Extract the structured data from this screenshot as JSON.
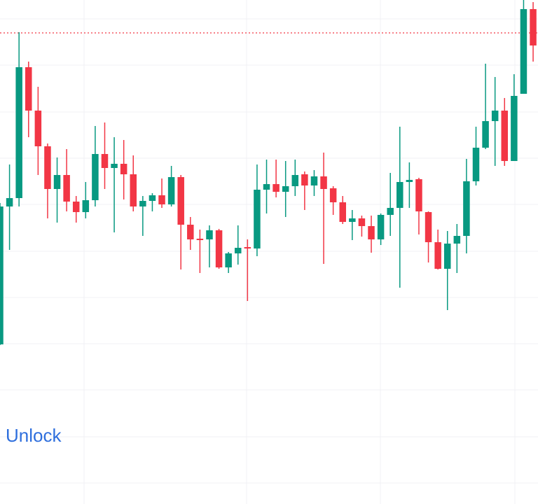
{
  "chart_data": {
    "type": "candlestick",
    "open": [
      228,
      425,
      437,
      624,
      562,
      511,
      450,
      470,
      432,
      417,
      434,
      500,
      480,
      486,
      471,
      425,
      433,
      441,
      428,
      467,
      399,
      379,
      378,
      391,
      338,
      358,
      367,
      365,
      449,
      457,
      446,
      454,
      471,
      455,
      468,
      451,
      431,
      403,
      408,
      397,
      378,
      413,
      423,
      460,
      464,
      417,
      374,
      336,
      372,
      383,
      461,
      509,
      547,
      562,
      490,
      586,
      707
    ],
    "high": [
      430,
      485,
      674,
      632,
      596,
      515,
      495,
      507,
      440,
      460,
      540,
      545,
      524,
      520,
      498,
      440,
      444,
      465,
      483,
      470,
      410,
      392,
      398,
      393,
      360,
      398,
      378,
      485,
      492,
      492,
      490,
      492,
      475,
      477,
      502,
      454,
      440,
      420,
      412,
      412,
      415,
      473,
      539,
      488,
      466,
      418,
      392,
      390,
      400,
      493,
      539,
      629,
      610,
      580,
      614,
      720,
      717
    ],
    "low": [
      227,
      363,
      425,
      524,
      470,
      408,
      402,
      418,
      402,
      408,
      425,
      450,
      388,
      435,
      418,
      383,
      418,
      423,
      425,
      335,
      363,
      330,
      338,
      336,
      330,
      342,
      290,
      354,
      415,
      438,
      410,
      440,
      420,
      440,
      343,
      413,
      400,
      377,
      382,
      359,
      370,
      383,
      309,
      423,
      385,
      345,
      335,
      277,
      330,
      358,
      455,
      507,
      483,
      483,
      490,
      586,
      632
    ],
    "close": [
      425,
      437,
      624,
      562,
      511,
      450,
      470,
      432,
      417,
      434,
      500,
      480,
      486,
      471,
      425,
      433,
      441,
      428,
      467,
      399,
      378,
      377,
      391,
      338,
      358,
      366,
      365,
      449,
      457,
      446,
      454,
      470,
      455,
      468,
      450,
      431,
      403,
      408,
      397,
      378,
      413,
      423,
      460,
      463,
      418,
      374,
      336,
      372,
      383,
      461,
      509,
      547,
      562,
      490,
      583,
      707,
      655
    ],
    "up_color": "#089981",
    "down_color": "#f23645",
    "ylim": [
      0,
      720
    ],
    "yticks": [
      30,
      96,
      163,
      229,
      295,
      361,
      428,
      494,
      560,
      627,
      693
    ],
    "grid": true,
    "price_line": 673,
    "price_line_color": "#f23645",
    "annotation": "Unlock"
  }
}
